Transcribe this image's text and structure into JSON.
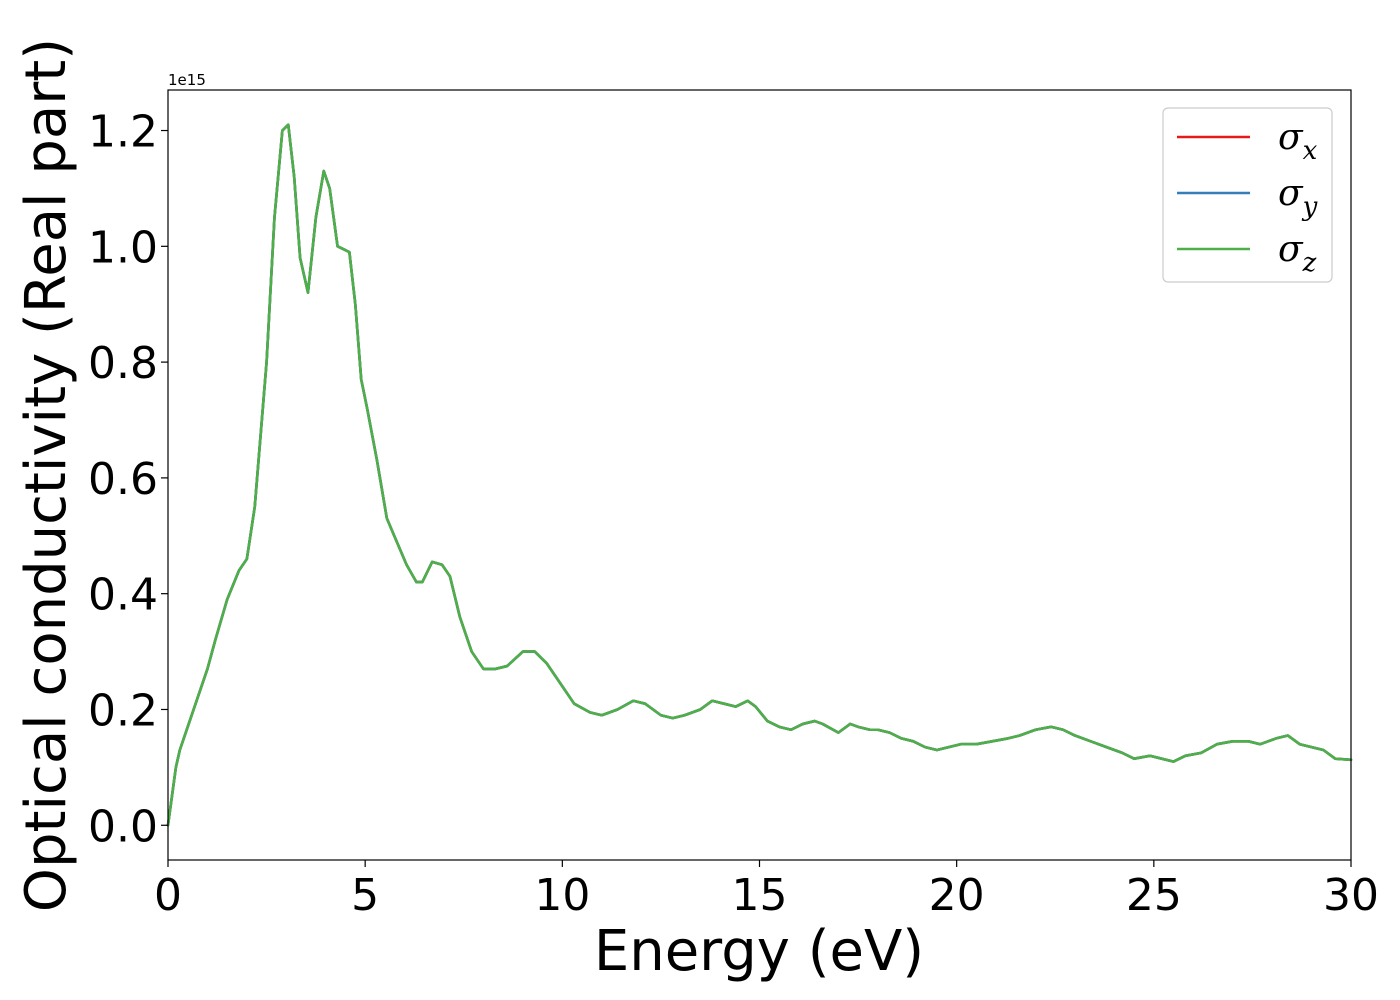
{
  "chart_data": {
    "type": "line",
    "title": "",
    "xlabel": "Energy (eV)",
    "ylabel": "Optical conductivity (Real part)",
    "y_offset_text": "1e15",
    "y_scale": 1000000000000000.0,
    "xlim": [
      0,
      30
    ],
    "ylim": [
      -0.06,
      1.27
    ],
    "xticks": [
      0,
      5,
      10,
      15,
      20,
      25,
      30
    ],
    "xtick_labels": [
      "0",
      "5",
      "10",
      "15",
      "20",
      "25",
      "30"
    ],
    "yticks": [
      0.0,
      0.2,
      0.4,
      0.6,
      0.8,
      1.0,
      1.2
    ],
    "ytick_labels": [
      "0.0",
      "0.2",
      "0.4",
      "0.6",
      "0.8",
      "1.0",
      "1.2"
    ],
    "grid": false,
    "legend_position": "top-right",
    "x": [
      0,
      0.1,
      0.2,
      0.3,
      0.5,
      0.7,
      1.0,
      1.2,
      1.5,
      1.8,
      2.0,
      2.2,
      2.5,
      2.7,
      2.9,
      3.05,
      3.2,
      3.35,
      3.55,
      3.75,
      3.95,
      4.1,
      4.3,
      4.45,
      4.6,
      4.75,
      4.9,
      5.05,
      5.3,
      5.55,
      5.8,
      6.05,
      6.3,
      6.45,
      6.7,
      6.95,
      7.15,
      7.4,
      7.7,
      8.0,
      8.3,
      8.6,
      9.0,
      9.3,
      9.6,
      9.9,
      10.3,
      10.7,
      11.0,
      11.4,
      11.8,
      12.1,
      12.5,
      12.8,
      13.1,
      13.5,
      13.8,
      14.1,
      14.4,
      14.7,
      14.9,
      15.2,
      15.5,
      15.8,
      16.1,
      16.4,
      16.6,
      17.0,
      17.3,
      17.5,
      17.8,
      18.0,
      18.3,
      18.6,
      18.9,
      19.2,
      19.5,
      19.8,
      20.1,
      20.5,
      20.9,
      21.3,
      21.6,
      22.0,
      22.4,
      22.7,
      23.0,
      23.4,
      23.8,
      24.2,
      24.5,
      24.9,
      25.2,
      25.5,
      25.8,
      26.2,
      26.6,
      27.0,
      27.4,
      27.7,
      28.1,
      28.4,
      28.7,
      29.0,
      29.3,
      29.6,
      30.0
    ],
    "series": [
      {
        "name": "σ_x",
        "color": "#e41a1c",
        "values": [
          0.0,
          0.05,
          0.1,
          0.13,
          0.17,
          0.21,
          0.27,
          0.32,
          0.39,
          0.44,
          0.46,
          0.55,
          0.8,
          1.05,
          1.2,
          1.21,
          1.12,
          0.98,
          0.92,
          1.05,
          1.13,
          1.1,
          1.0,
          0.995,
          0.99,
          0.9,
          0.77,
          0.72,
          0.63,
          0.53,
          0.49,
          0.45,
          0.42,
          0.42,
          0.455,
          0.45,
          0.43,
          0.36,
          0.3,
          0.27,
          0.27,
          0.275,
          0.3,
          0.3,
          0.28,
          0.25,
          0.21,
          0.195,
          0.19,
          0.2,
          0.215,
          0.21,
          0.19,
          0.185,
          0.19,
          0.2,
          0.215,
          0.21,
          0.205,
          0.215,
          0.205,
          0.18,
          0.17,
          0.165,
          0.175,
          0.18,
          0.175,
          0.16,
          0.175,
          0.17,
          0.165,
          0.165,
          0.16,
          0.15,
          0.145,
          0.135,
          0.13,
          0.135,
          0.14,
          0.14,
          0.145,
          0.15,
          0.155,
          0.165,
          0.17,
          0.165,
          0.155,
          0.145,
          0.135,
          0.125,
          0.115,
          0.12,
          0.115,
          0.11,
          0.12,
          0.125,
          0.14,
          0.145,
          0.145,
          0.14,
          0.15,
          0.155,
          0.14,
          0.135,
          0.13,
          0.115,
          0.113
        ]
      },
      {
        "name": "σ_y",
        "color": "#377eb8",
        "values": [
          0.0,
          0.05,
          0.1,
          0.13,
          0.17,
          0.21,
          0.27,
          0.32,
          0.39,
          0.44,
          0.46,
          0.55,
          0.8,
          1.05,
          1.2,
          1.21,
          1.12,
          0.98,
          0.92,
          1.05,
          1.13,
          1.1,
          1.0,
          0.995,
          0.99,
          0.9,
          0.77,
          0.72,
          0.63,
          0.53,
          0.49,
          0.45,
          0.42,
          0.42,
          0.455,
          0.45,
          0.43,
          0.36,
          0.3,
          0.27,
          0.27,
          0.275,
          0.3,
          0.3,
          0.28,
          0.25,
          0.21,
          0.195,
          0.19,
          0.2,
          0.215,
          0.21,
          0.19,
          0.185,
          0.19,
          0.2,
          0.215,
          0.21,
          0.205,
          0.215,
          0.205,
          0.18,
          0.17,
          0.165,
          0.175,
          0.18,
          0.175,
          0.16,
          0.175,
          0.17,
          0.165,
          0.165,
          0.16,
          0.15,
          0.145,
          0.135,
          0.13,
          0.135,
          0.14,
          0.14,
          0.145,
          0.15,
          0.155,
          0.165,
          0.17,
          0.165,
          0.155,
          0.145,
          0.135,
          0.125,
          0.115,
          0.12,
          0.115,
          0.11,
          0.12,
          0.125,
          0.14,
          0.145,
          0.145,
          0.14,
          0.15,
          0.155,
          0.14,
          0.135,
          0.13,
          0.115,
          0.113
        ]
      },
      {
        "name": "σ_z",
        "color": "#4daf4a",
        "values": [
          0.0,
          0.05,
          0.1,
          0.13,
          0.17,
          0.21,
          0.27,
          0.32,
          0.39,
          0.44,
          0.46,
          0.55,
          0.8,
          1.05,
          1.2,
          1.21,
          1.12,
          0.98,
          0.92,
          1.05,
          1.13,
          1.1,
          1.0,
          0.995,
          0.99,
          0.9,
          0.77,
          0.72,
          0.63,
          0.53,
          0.49,
          0.45,
          0.42,
          0.42,
          0.455,
          0.45,
          0.43,
          0.36,
          0.3,
          0.27,
          0.27,
          0.275,
          0.3,
          0.3,
          0.28,
          0.25,
          0.21,
          0.195,
          0.19,
          0.2,
          0.215,
          0.21,
          0.19,
          0.185,
          0.19,
          0.2,
          0.215,
          0.21,
          0.205,
          0.215,
          0.205,
          0.18,
          0.17,
          0.165,
          0.175,
          0.18,
          0.175,
          0.16,
          0.175,
          0.17,
          0.165,
          0.165,
          0.16,
          0.15,
          0.145,
          0.135,
          0.13,
          0.135,
          0.14,
          0.14,
          0.145,
          0.15,
          0.155,
          0.165,
          0.17,
          0.165,
          0.155,
          0.145,
          0.135,
          0.125,
          0.115,
          0.12,
          0.115,
          0.11,
          0.12,
          0.125,
          0.14,
          0.145,
          0.145,
          0.14,
          0.15,
          0.155,
          0.14,
          0.135,
          0.13,
          0.115,
          0.113
        ]
      }
    ],
    "legend": [
      {
        "symbol": "σ",
        "sub": "x",
        "color": "#e41a1c"
      },
      {
        "symbol": "σ",
        "sub": "y",
        "color": "#377eb8"
      },
      {
        "symbol": "σ",
        "sub": "z",
        "color": "#4daf4a"
      }
    ]
  }
}
